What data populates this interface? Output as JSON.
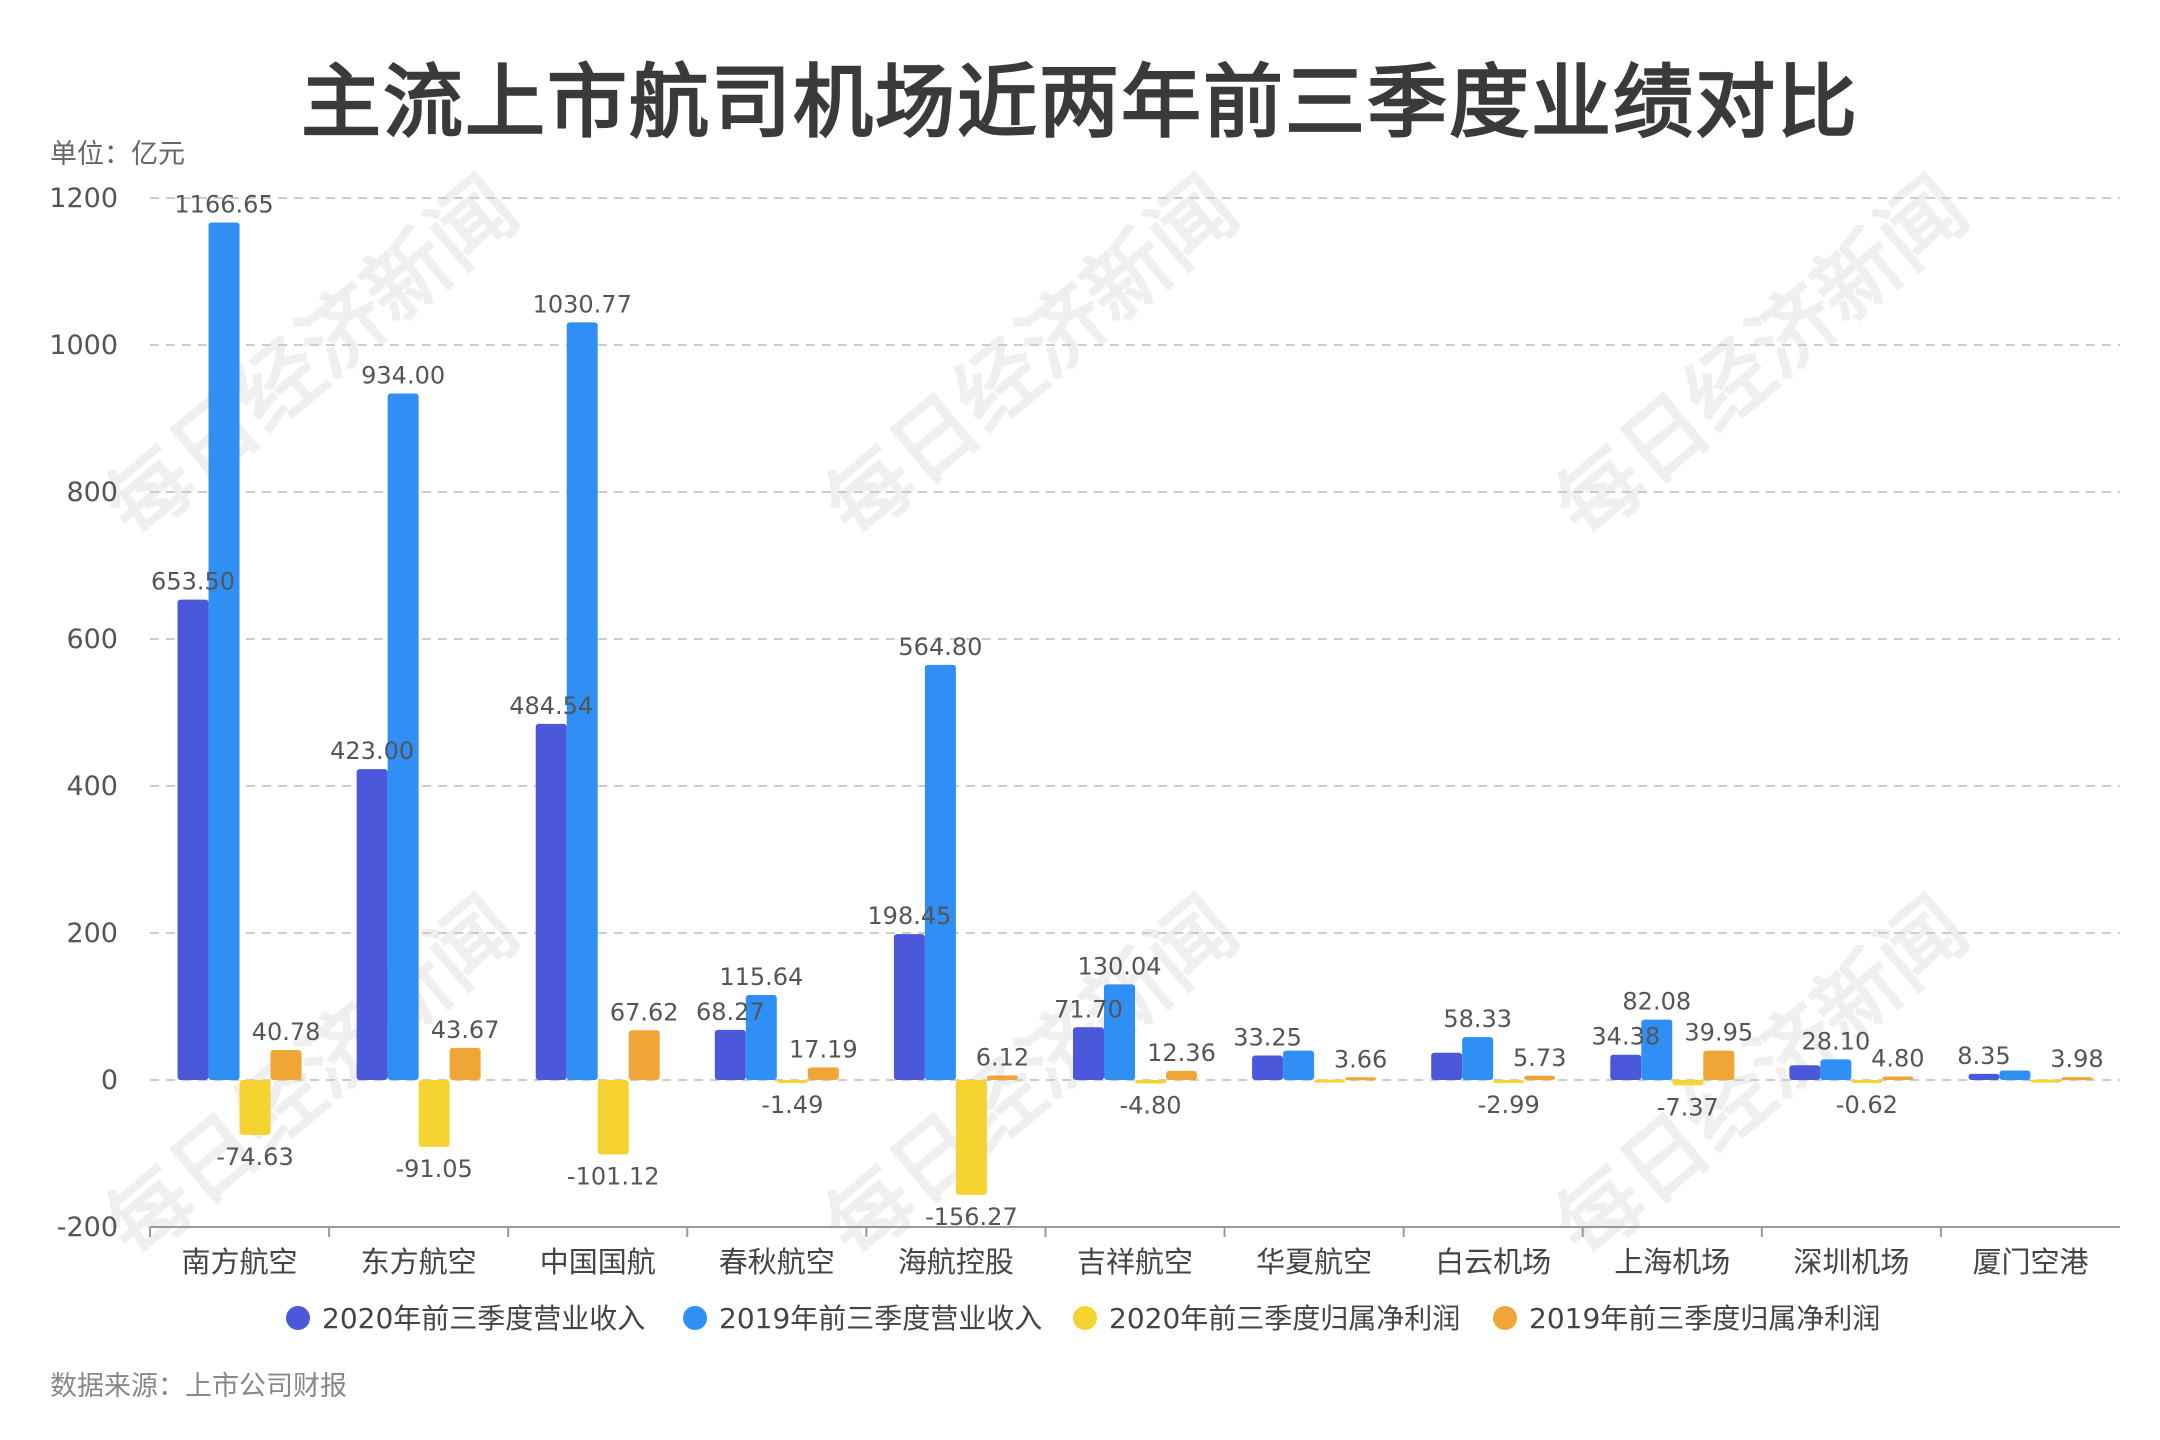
{
  "title": "主流上市航司机场近两年前三季度业绩对比",
  "unit_label": "单位：亿元",
  "source_note": "数据来源：上市公司财报",
  "watermark": "每日经济新闻",
  "colors": {
    "s2020_revenue": "#4a58d9",
    "s2019_revenue": "#2f8ff5",
    "s2020_profit": "#f5d330",
    "s2019_profit": "#f0a637",
    "grid": "#cccccc"
  },
  "chart_data": {
    "type": "bar",
    "title": "主流上市航司机场近两年前三季度业绩对比",
    "ylabel": "单位：亿元",
    "ylim": [
      -200,
      1200
    ],
    "yticks": [
      -200,
      0,
      200,
      400,
      600,
      800,
      1000,
      1200
    ],
    "grid": true,
    "legend_position": "bottom",
    "categories": [
      "南方航空",
      "东方航空",
      "中国国航",
      "春秋航空",
      "海航控股",
      "吉祥航空",
      "华夏航空",
      "白云机场",
      "上海机场",
      "深圳机场",
      "厦门空港"
    ],
    "series": [
      {
        "name": "2020年前三季度营业收入",
        "color": "#4a58d9",
        "values": [
          653.5,
          423.0,
          484.54,
          68.27,
          198.45,
          71.7,
          33.25,
          37.0,
          34.38,
          20.0,
          8.35
        ],
        "labels": [
          "653.50",
          "423.00",
          "484.54",
          "68.27",
          "198.45",
          "71.70",
          "33.25",
          "",
          "34.38",
          "",
          "8.35"
        ]
      },
      {
        "name": "2019年前三季度营业收入",
        "color": "#2f8ff5",
        "values": [
          1166.65,
          934.0,
          1030.77,
          115.64,
          564.8,
          130.04,
          40.0,
          58.33,
          82.08,
          28.1,
          13.0
        ],
        "labels": [
          "1166.65",
          "934.00",
          "1030.77",
          "115.64",
          "564.80",
          "130.04",
          "",
          "58.33",
          "82.08",
          "28.10",
          ""
        ]
      },
      {
        "name": "2020年前三季度归属净利润",
        "color": "#f5d330",
        "values": [
          -74.63,
          -91.05,
          -101.12,
          -1.49,
          -156.27,
          -4.8,
          0.5,
          -2.99,
          -7.37,
          -0.62,
          0.5
        ],
        "labels": [
          "-74.63",
          "-91.05",
          "-101.12",
          "-1.49",
          "-156.27",
          "-4.80",
          "",
          "-2.99",
          "-7.37",
          "-0.62",
          ""
        ]
      },
      {
        "name": "2019年前三季度归属净利润",
        "color": "#f0a637",
        "values": [
          40.78,
          43.67,
          67.62,
          17.19,
          6.12,
          12.36,
          3.66,
          5.73,
          39.95,
          4.8,
          3.98
        ],
        "labels": [
          "40.78",
          "43.67",
          "67.62",
          "17.19",
          "6.12",
          "12.36",
          "3.66",
          "5.73",
          "39.95",
          "4.80",
          "3.98"
        ]
      }
    ]
  }
}
